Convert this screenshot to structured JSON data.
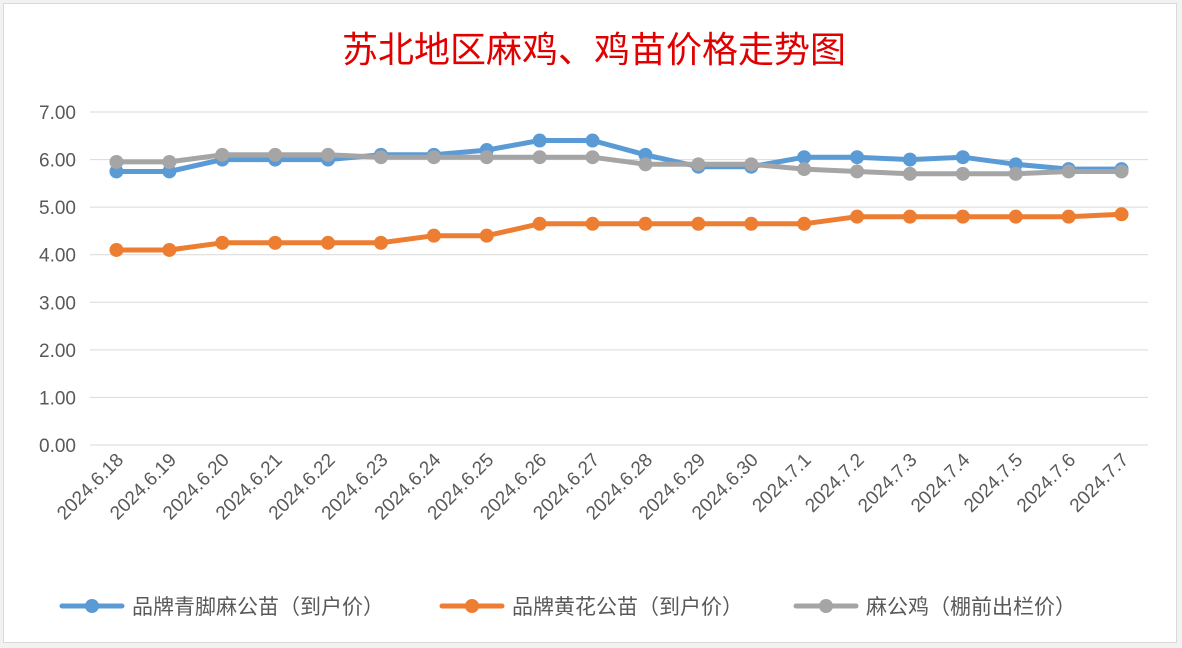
{
  "chart_data": {
    "type": "line",
    "title": "苏北地区麻鸡、鸡苗价格走势图",
    "xlabel": "",
    "ylabel": "",
    "ylim": [
      0,
      7
    ],
    "yticks": [
      "0.00",
      "1.00",
      "2.00",
      "3.00",
      "4.00",
      "5.00",
      "6.00",
      "7.00"
    ],
    "grid": true,
    "legend_position": "bottom",
    "categories": [
      "2024.6.18",
      "2024.6.19",
      "2024.6.20",
      "2024.6.21",
      "2024.6.22",
      "2024.6.23",
      "2024.6.24",
      "2024.6.25",
      "2024.6.26",
      "2024.6.27",
      "2024.6.28",
      "2024.6.29",
      "2024.6.30",
      "2024.7.1",
      "2024.7.2",
      "2024.7.3",
      "2024.7.4",
      "2024.7.5",
      "2024.7.6",
      "2024.7.7"
    ],
    "series": [
      {
        "name": "品牌青脚麻公苗（到户价）",
        "color": "#5b9bd5",
        "values": [
          5.75,
          5.75,
          6.0,
          6.0,
          6.0,
          6.1,
          6.1,
          6.2,
          6.4,
          6.4,
          6.1,
          5.85,
          5.85,
          6.05,
          6.05,
          6.0,
          6.05,
          5.9,
          5.8,
          5.8
        ]
      },
      {
        "name": "品牌黄花公苗（到户价）",
        "color": "#ed7d31",
        "values": [
          4.1,
          4.1,
          4.25,
          4.25,
          4.25,
          4.25,
          4.4,
          4.4,
          4.65,
          4.65,
          4.65,
          4.65,
          4.65,
          4.65,
          4.8,
          4.8,
          4.8,
          4.8,
          4.8,
          4.85
        ]
      },
      {
        "name": "麻公鸡（棚前出栏价）",
        "color": "#a5a5a5",
        "values": [
          5.95,
          5.95,
          6.1,
          6.1,
          6.1,
          6.05,
          6.05,
          6.05,
          6.05,
          6.05,
          5.9,
          5.9,
          5.9,
          5.8,
          5.75,
          5.7,
          5.7,
          5.7,
          5.75,
          5.75
        ]
      }
    ]
  },
  "colors": {
    "title": "#e00000",
    "grid": "#d9d9d9",
    "tick_text": "#595959"
  }
}
